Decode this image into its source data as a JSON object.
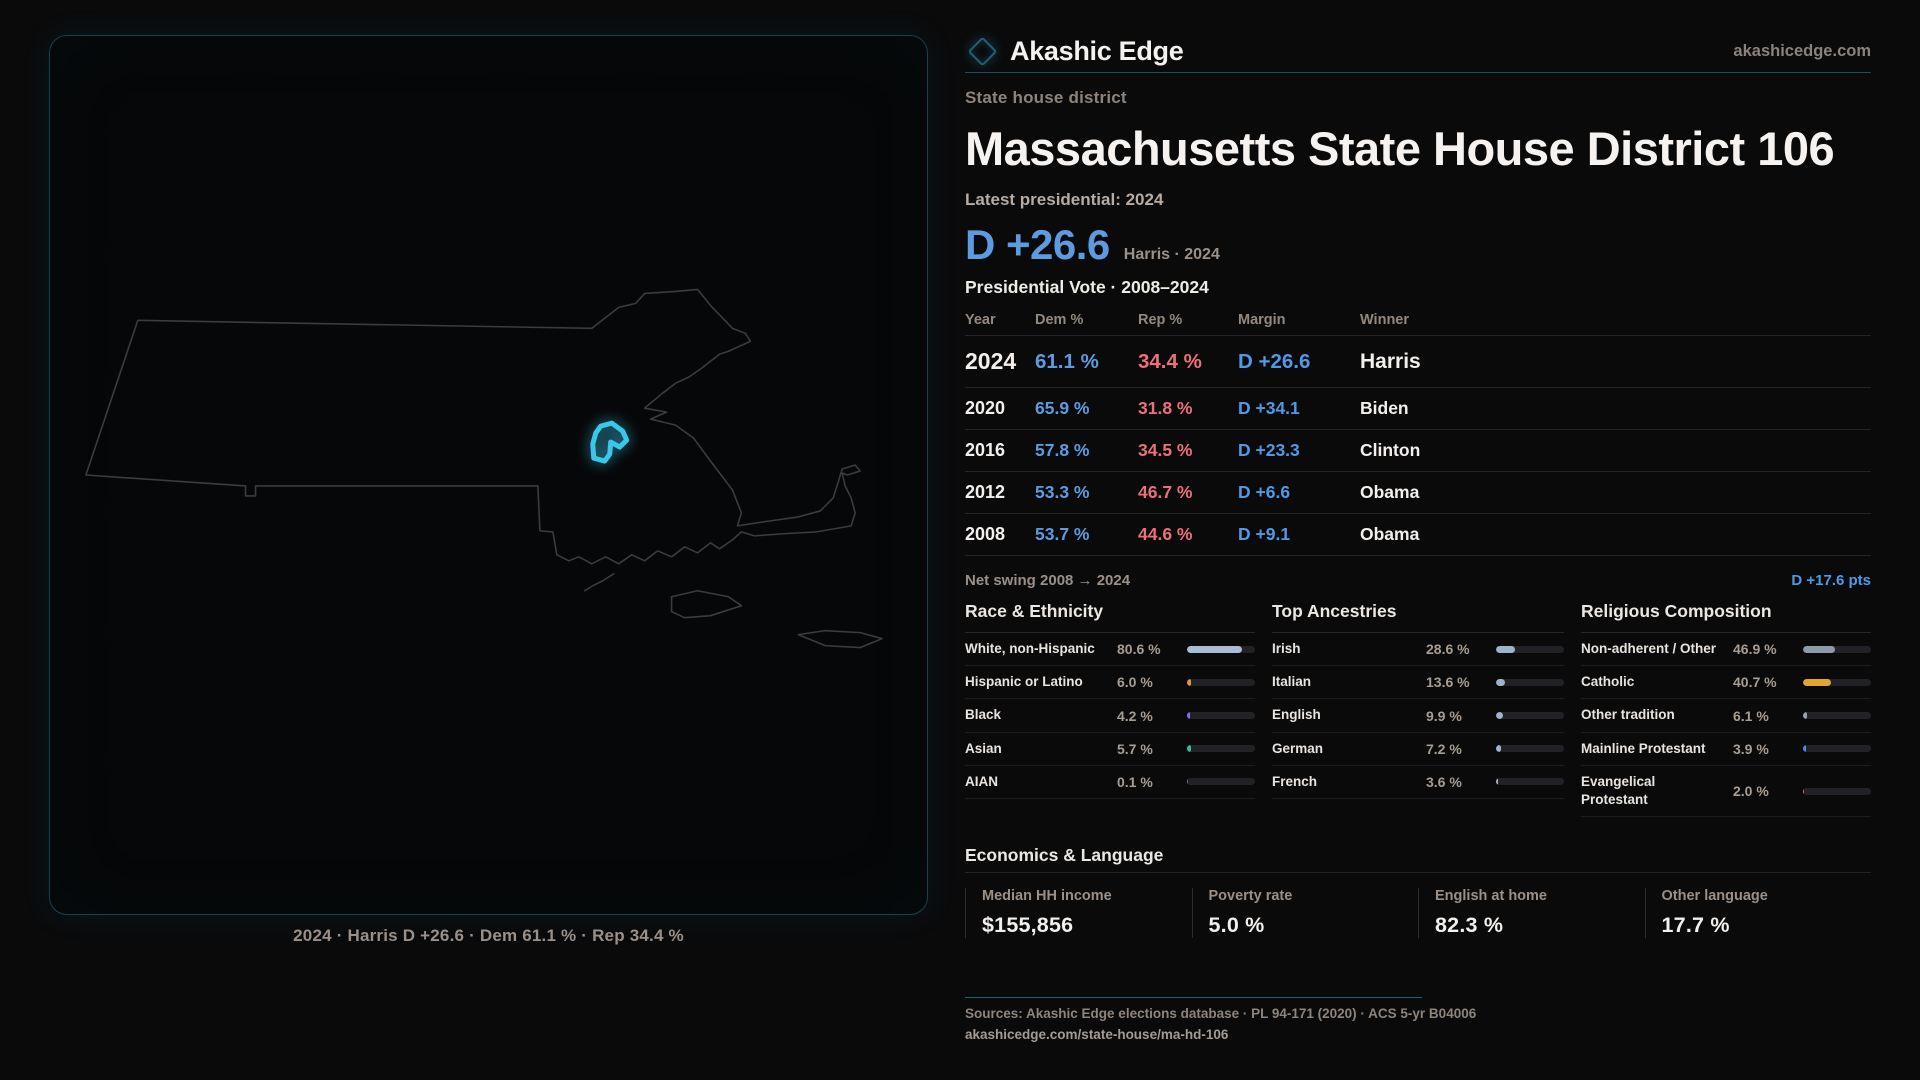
{
  "colors": {
    "dem": "#5c9be0",
    "rep": "#ec6f7a",
    "marginblue": "#4f9ae8",
    "district": "#3ac8ea",
    "bartrack": "#212126"
  },
  "brand": {
    "name": "Akashic Edge",
    "site": "akashicedge.com"
  },
  "kicker": "State house district",
  "title": "Massachusetts State House District 106",
  "latest_label": "Latest presidential: 2024",
  "hero": {
    "margin": "D +26.6",
    "sub": "Harris · 2024"
  },
  "map": {
    "caption": "2024 · Harris D +26.6 · Dem 61.1 % · Rep 34.4 %"
  },
  "table": {
    "title": "Presidential Vote · 2008–2024",
    "columns": [
      "Year",
      "Dem %",
      "Rep %",
      "Margin",
      "Winner"
    ],
    "rows": [
      {
        "year": "2024",
        "dem": "61.1 %",
        "rep": "34.4 %",
        "margin": "D +26.6",
        "winner": "Harris",
        "big": true
      },
      {
        "year": "2020",
        "dem": "65.9 %",
        "rep": "31.8 %",
        "margin": "D +34.1",
        "winner": "Biden",
        "big": false
      },
      {
        "year": "2016",
        "dem": "57.8 %",
        "rep": "34.5 %",
        "margin": "D +23.3",
        "winner": "Clinton",
        "big": false
      },
      {
        "year": "2012",
        "dem": "53.3 %",
        "rep": "46.7 %",
        "margin": "D +6.6",
        "winner": "Obama",
        "big": false
      },
      {
        "year": "2008",
        "dem": "53.7 %",
        "rep": "44.6 %",
        "margin": "D +9.1",
        "winner": "Obama",
        "big": false
      }
    ],
    "net_swing_label": "Net swing 2008 → 2024",
    "net_swing_value": "D +17.6 pts"
  },
  "demographics": [
    {
      "title": "Race & Ethnicity",
      "rows": [
        {
          "label": "White, non-Hispanic",
          "value": 80.6,
          "display": "80.6 %",
          "color": "#a9bed6"
        },
        {
          "label": "Hispanic or Latino",
          "value": 6.0,
          "display": "6.0 %",
          "color": "#e1962f"
        },
        {
          "label": "Black",
          "value": 4.2,
          "display": "4.2 %",
          "color": "#8374e6"
        },
        {
          "label": "Asian",
          "value": 5.7,
          "display": "5.7 %",
          "color": "#2fbe8e"
        },
        {
          "label": "AIAN",
          "value": 0.1,
          "display": "0.1 %",
          "color": "#6b7280"
        }
      ]
    },
    {
      "title": "Top Ancestries",
      "rows": [
        {
          "label": "Irish",
          "value": 28.6,
          "display": "28.6 %",
          "color": "#9fb3ca"
        },
        {
          "label": "Italian",
          "value": 13.6,
          "display": "13.6 %",
          "color": "#9fb3ca"
        },
        {
          "label": "English",
          "value": 9.9,
          "display": "9.9 %",
          "color": "#9fb3ca"
        },
        {
          "label": "German",
          "value": 7.2,
          "display": "7.2 %",
          "color": "#9fb3ca"
        },
        {
          "label": "French",
          "value": 3.6,
          "display": "3.6 %",
          "color": "#9fb3ca"
        }
      ]
    },
    {
      "title": "Religious Composition",
      "rows": [
        {
          "label": "Non-adherent / Other",
          "value": 46.9,
          "display": "46.9 %",
          "color": "#8e99a9"
        },
        {
          "label": "Catholic",
          "value": 40.7,
          "display": "40.7 %",
          "color": "#e2a62c"
        },
        {
          "label": "Other tradition",
          "value": 6.1,
          "display": "6.1 %",
          "color": "#97a1ae"
        },
        {
          "label": "Mainline Protestant",
          "value": 3.9,
          "display": "3.9 %",
          "color": "#4a8fe2"
        },
        {
          "label": "Evangelical Protestant",
          "value": 2.0,
          "display": "2.0 %",
          "color": "#e06c6c"
        }
      ]
    }
  ],
  "economics": {
    "title": "Economics & Language",
    "stats": [
      {
        "label": "Median HH income",
        "value": "$155,856"
      },
      {
        "label": "Poverty rate",
        "value": "5.0 %"
      },
      {
        "label": "English at home",
        "value": "82.3 %"
      },
      {
        "label": "Other language",
        "value": "17.7 %"
      }
    ]
  },
  "footer": {
    "sources": "Sources: Akashic Edge elections database · PL 94-171 (2020) · ACS 5-yr B04006",
    "url": "akashicedge.com/state-house/ma-hd-106"
  },
  "chart_data": [
    {
      "type": "table",
      "title": "Presidential Vote · 2008–2024",
      "columns": [
        "Year",
        "Dem %",
        "Rep %",
        "Margin",
        "Winner"
      ],
      "rows": [
        [
          2024,
          61.1,
          34.4,
          "D +26.6",
          "Harris"
        ],
        [
          2020,
          65.9,
          31.8,
          "D +34.1",
          "Biden"
        ],
        [
          2016,
          57.8,
          34.5,
          "D +23.3",
          "Clinton"
        ],
        [
          2012,
          53.3,
          46.7,
          "D +6.6",
          "Obama"
        ],
        [
          2008,
          53.7,
          44.6,
          "D +9.1",
          "Obama"
        ]
      ],
      "net_swing_2008_2024": "D +17.6 pts"
    },
    {
      "type": "bar",
      "title": "Race & Ethnicity",
      "categories": [
        "White, non-Hispanic",
        "Hispanic or Latino",
        "Black",
        "Asian",
        "AIAN"
      ],
      "values": [
        80.6,
        6.0,
        4.2,
        5.7,
        0.1
      ],
      "xlabel": "",
      "ylabel": "Percent",
      "xlim": [
        0,
        100
      ]
    },
    {
      "type": "bar",
      "title": "Top Ancestries",
      "categories": [
        "Irish",
        "Italian",
        "English",
        "German",
        "French"
      ],
      "values": [
        28.6,
        13.6,
        9.9,
        7.2,
        3.6
      ],
      "xlabel": "",
      "ylabel": "Percent",
      "xlim": [
        0,
        100
      ]
    },
    {
      "type": "bar",
      "title": "Religious Composition",
      "categories": [
        "Non-adherent / Other",
        "Catholic",
        "Other tradition",
        "Mainline Protestant",
        "Evangelical Protestant"
      ],
      "values": [
        46.9,
        40.7,
        6.1,
        3.9,
        2.0
      ],
      "xlabel": "",
      "ylabel": "Percent",
      "xlim": [
        0,
        100
      ]
    },
    {
      "type": "bar",
      "title": "Economics & Language",
      "categories": [
        "Median HH income",
        "Poverty rate",
        "English at home",
        "Other language"
      ],
      "values": [
        155856,
        5.0,
        82.3,
        17.7
      ]
    }
  ]
}
